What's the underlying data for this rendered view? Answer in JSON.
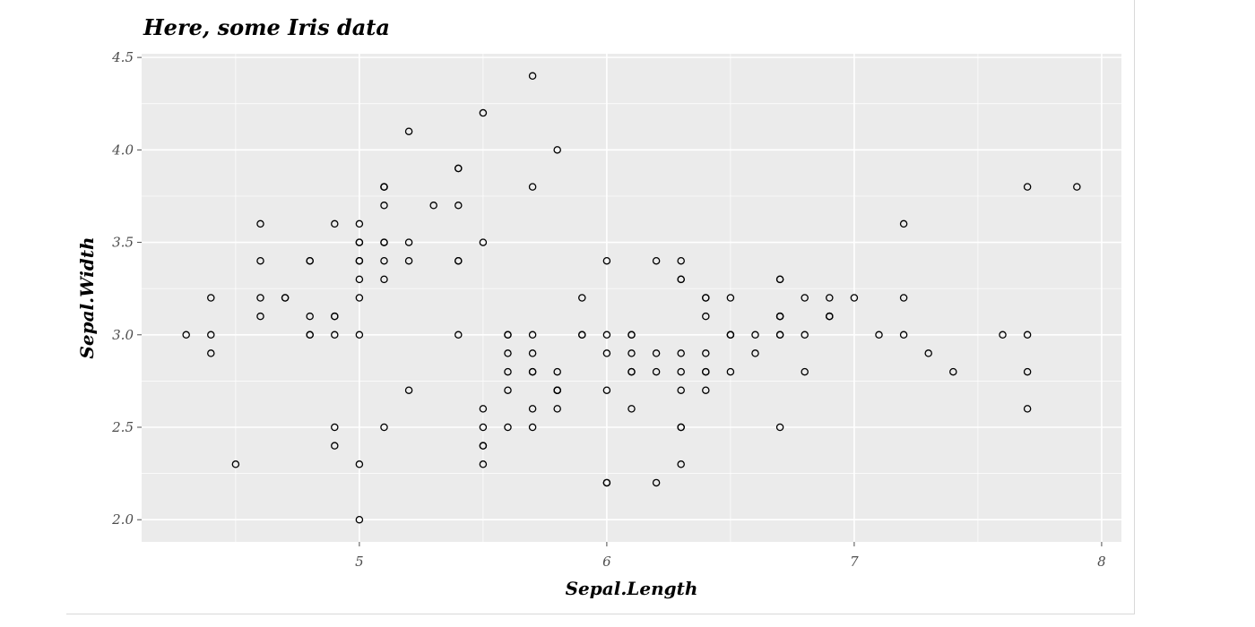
{
  "chart_data": {
    "type": "scatter",
    "title": "Here, some Iris data",
    "xlabel": "Sepal.Length",
    "ylabel": "Sepal.Width",
    "xlim": [
      4.12,
      8.08
    ],
    "ylim": [
      1.88,
      4.52
    ],
    "xticks": [
      5,
      6,
      7,
      8
    ],
    "yticks": [
      2.0,
      2.5,
      3.0,
      3.5,
      4.0,
      4.5
    ],
    "xtick_labels": [
      "5",
      "6",
      "7",
      "8"
    ],
    "ytick_labels": [
      "2.0",
      "2.5",
      "3.0",
      "3.5",
      "4.0",
      "4.5"
    ],
    "grid": true,
    "colors": {
      "panel": "#ebebeb",
      "grid": "#ffffff",
      "point": "#000000",
      "tick_text": "#4d4d4d"
    },
    "points": [
      [
        5.1,
        3.5
      ],
      [
        4.9,
        3.0
      ],
      [
        4.7,
        3.2
      ],
      [
        4.6,
        3.1
      ],
      [
        5.0,
        3.6
      ],
      [
        5.4,
        3.9
      ],
      [
        4.6,
        3.4
      ],
      [
        5.0,
        3.4
      ],
      [
        4.4,
        2.9
      ],
      [
        4.9,
        3.1
      ],
      [
        5.4,
        3.7
      ],
      [
        4.8,
        3.4
      ],
      [
        4.8,
        3.0
      ],
      [
        4.3,
        3.0
      ],
      [
        5.8,
        4.0
      ],
      [
        5.7,
        4.4
      ],
      [
        5.4,
        3.9
      ],
      [
        5.1,
        3.5
      ],
      [
        5.7,
        3.8
      ],
      [
        5.1,
        3.8
      ],
      [
        5.4,
        3.4
      ],
      [
        5.1,
        3.7
      ],
      [
        4.6,
        3.6
      ],
      [
        5.1,
        3.3
      ],
      [
        4.8,
        3.4
      ],
      [
        5.0,
        3.0
      ],
      [
        5.0,
        3.4
      ],
      [
        5.2,
        3.5
      ],
      [
        5.2,
        3.4
      ],
      [
        4.7,
        3.2
      ],
      [
        4.8,
        3.1
      ],
      [
        5.4,
        3.4
      ],
      [
        5.2,
        4.1
      ],
      [
        5.5,
        4.2
      ],
      [
        4.9,
        3.1
      ],
      [
        5.0,
        3.2
      ],
      [
        5.5,
        3.5
      ],
      [
        4.9,
        3.6
      ],
      [
        4.4,
        3.0
      ],
      [
        5.1,
        3.4
      ],
      [
        5.0,
        3.5
      ],
      [
        4.5,
        2.3
      ],
      [
        4.4,
        3.2
      ],
      [
        5.0,
        3.5
      ],
      [
        5.1,
        3.8
      ],
      [
        4.8,
        3.0
      ],
      [
        5.1,
        3.8
      ],
      [
        4.6,
        3.2
      ],
      [
        5.3,
        3.7
      ],
      [
        5.0,
        3.3
      ],
      [
        7.0,
        3.2
      ],
      [
        6.4,
        3.2
      ],
      [
        6.9,
        3.1
      ],
      [
        5.5,
        2.3
      ],
      [
        6.5,
        2.8
      ],
      [
        5.7,
        2.8
      ],
      [
        6.3,
        3.3
      ],
      [
        4.9,
        2.4
      ],
      [
        6.6,
        2.9
      ],
      [
        5.2,
        2.7
      ],
      [
        5.0,
        2.0
      ],
      [
        5.9,
        3.0
      ],
      [
        6.0,
        2.2
      ],
      [
        6.1,
        2.9
      ],
      [
        5.6,
        2.9
      ],
      [
        6.7,
        3.1
      ],
      [
        5.6,
        3.0
      ],
      [
        5.8,
        2.7
      ],
      [
        6.2,
        2.2
      ],
      [
        5.6,
        2.5
      ],
      [
        5.9,
        3.2
      ],
      [
        6.1,
        2.8
      ],
      [
        6.3,
        2.5
      ],
      [
        6.1,
        2.8
      ],
      [
        6.4,
        2.9
      ],
      [
        6.6,
        3.0
      ],
      [
        6.8,
        2.8
      ],
      [
        6.7,
        3.0
      ],
      [
        6.0,
        2.9
      ],
      [
        5.7,
        2.6
      ],
      [
        5.5,
        2.4
      ],
      [
        5.5,
        2.4
      ],
      [
        5.8,
        2.7
      ],
      [
        6.0,
        2.7
      ],
      [
        5.4,
        3.0
      ],
      [
        6.0,
        3.4
      ],
      [
        6.7,
        3.1
      ],
      [
        6.3,
        2.3
      ],
      [
        5.6,
        3.0
      ],
      [
        5.5,
        2.5
      ],
      [
        5.5,
        2.6
      ],
      [
        6.1,
        3.0
      ],
      [
        5.8,
        2.6
      ],
      [
        5.0,
        2.3
      ],
      [
        5.6,
        2.7
      ],
      [
        5.7,
        3.0
      ],
      [
        5.7,
        2.9
      ],
      [
        6.2,
        2.9
      ],
      [
        5.1,
        2.5
      ],
      [
        5.7,
        2.8
      ],
      [
        6.3,
        3.3
      ],
      [
        5.8,
        2.7
      ],
      [
        7.1,
        3.0
      ],
      [
        6.3,
        2.9
      ],
      [
        6.5,
        3.0
      ],
      [
        7.6,
        3.0
      ],
      [
        4.9,
        2.5
      ],
      [
        7.3,
        2.9
      ],
      [
        6.7,
        2.5
      ],
      [
        7.2,
        3.6
      ],
      [
        6.5,
        3.2
      ],
      [
        6.4,
        2.7
      ],
      [
        6.8,
        3.0
      ],
      [
        5.7,
        2.5
      ],
      [
        5.8,
        2.8
      ],
      [
        6.4,
        3.2
      ],
      [
        6.5,
        3.0
      ],
      [
        7.7,
        3.8
      ],
      [
        7.7,
        2.6
      ],
      [
        6.0,
        2.2
      ],
      [
        6.9,
        3.2
      ],
      [
        5.6,
        2.8
      ],
      [
        7.7,
        2.8
      ],
      [
        6.3,
        2.7
      ],
      [
        6.7,
        3.3
      ],
      [
        7.2,
        3.2
      ],
      [
        6.2,
        2.8
      ],
      [
        6.1,
        3.0
      ],
      [
        6.4,
        2.8
      ],
      [
        7.2,
        3.0
      ],
      [
        7.4,
        2.8
      ],
      [
        7.9,
        3.8
      ],
      [
        6.4,
        2.8
      ],
      [
        6.3,
        2.8
      ],
      [
        6.1,
        2.6
      ],
      [
        7.7,
        3.0
      ],
      [
        6.3,
        3.4
      ],
      [
        6.4,
        3.1
      ],
      [
        6.0,
        3.0
      ],
      [
        6.9,
        3.1
      ],
      [
        6.7,
        3.1
      ],
      [
        6.9,
        3.1
      ],
      [
        5.8,
        2.7
      ],
      [
        6.8,
        3.2
      ],
      [
        6.7,
        3.3
      ],
      [
        6.7,
        3.0
      ],
      [
        6.3,
        2.5
      ],
      [
        6.5,
        3.0
      ],
      [
        6.2,
        3.4
      ],
      [
        5.9,
        3.0
      ]
    ]
  }
}
